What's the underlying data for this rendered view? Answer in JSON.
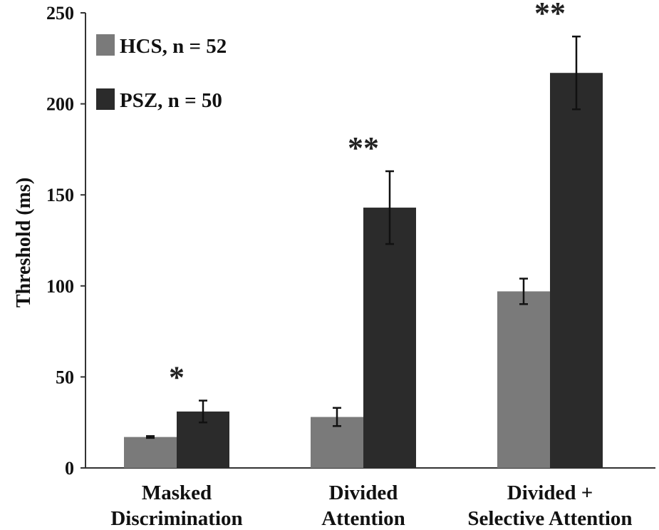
{
  "chart_data": {
    "type": "bar",
    "ylabel": "Threshold (ms)",
    "xlabel": "",
    "ylim": [
      0,
      250
    ],
    "yticks": [
      "0",
      "50",
      "100",
      "150",
      "200",
      "250"
    ],
    "grid": false,
    "legend_position": "top-left",
    "categories": [
      [
        "Masked",
        "Discrimination"
      ],
      [
        "Divided",
        "Attention"
      ],
      [
        "Divided +",
        "Selective Attention"
      ]
    ],
    "series": [
      {
        "name": "HCS, n = 52",
        "color": "#7a7a7a",
        "values": [
          17,
          28,
          97
        ],
        "errors": [
          0.5,
          5,
          7
        ]
      },
      {
        "name": "PSZ, n = 50",
        "color": "#2b2b2b",
        "values": [
          31,
          143,
          217
        ],
        "errors": [
          6,
          20,
          20
        ]
      }
    ],
    "annotations": [
      "*",
      "**",
      "**"
    ]
  }
}
